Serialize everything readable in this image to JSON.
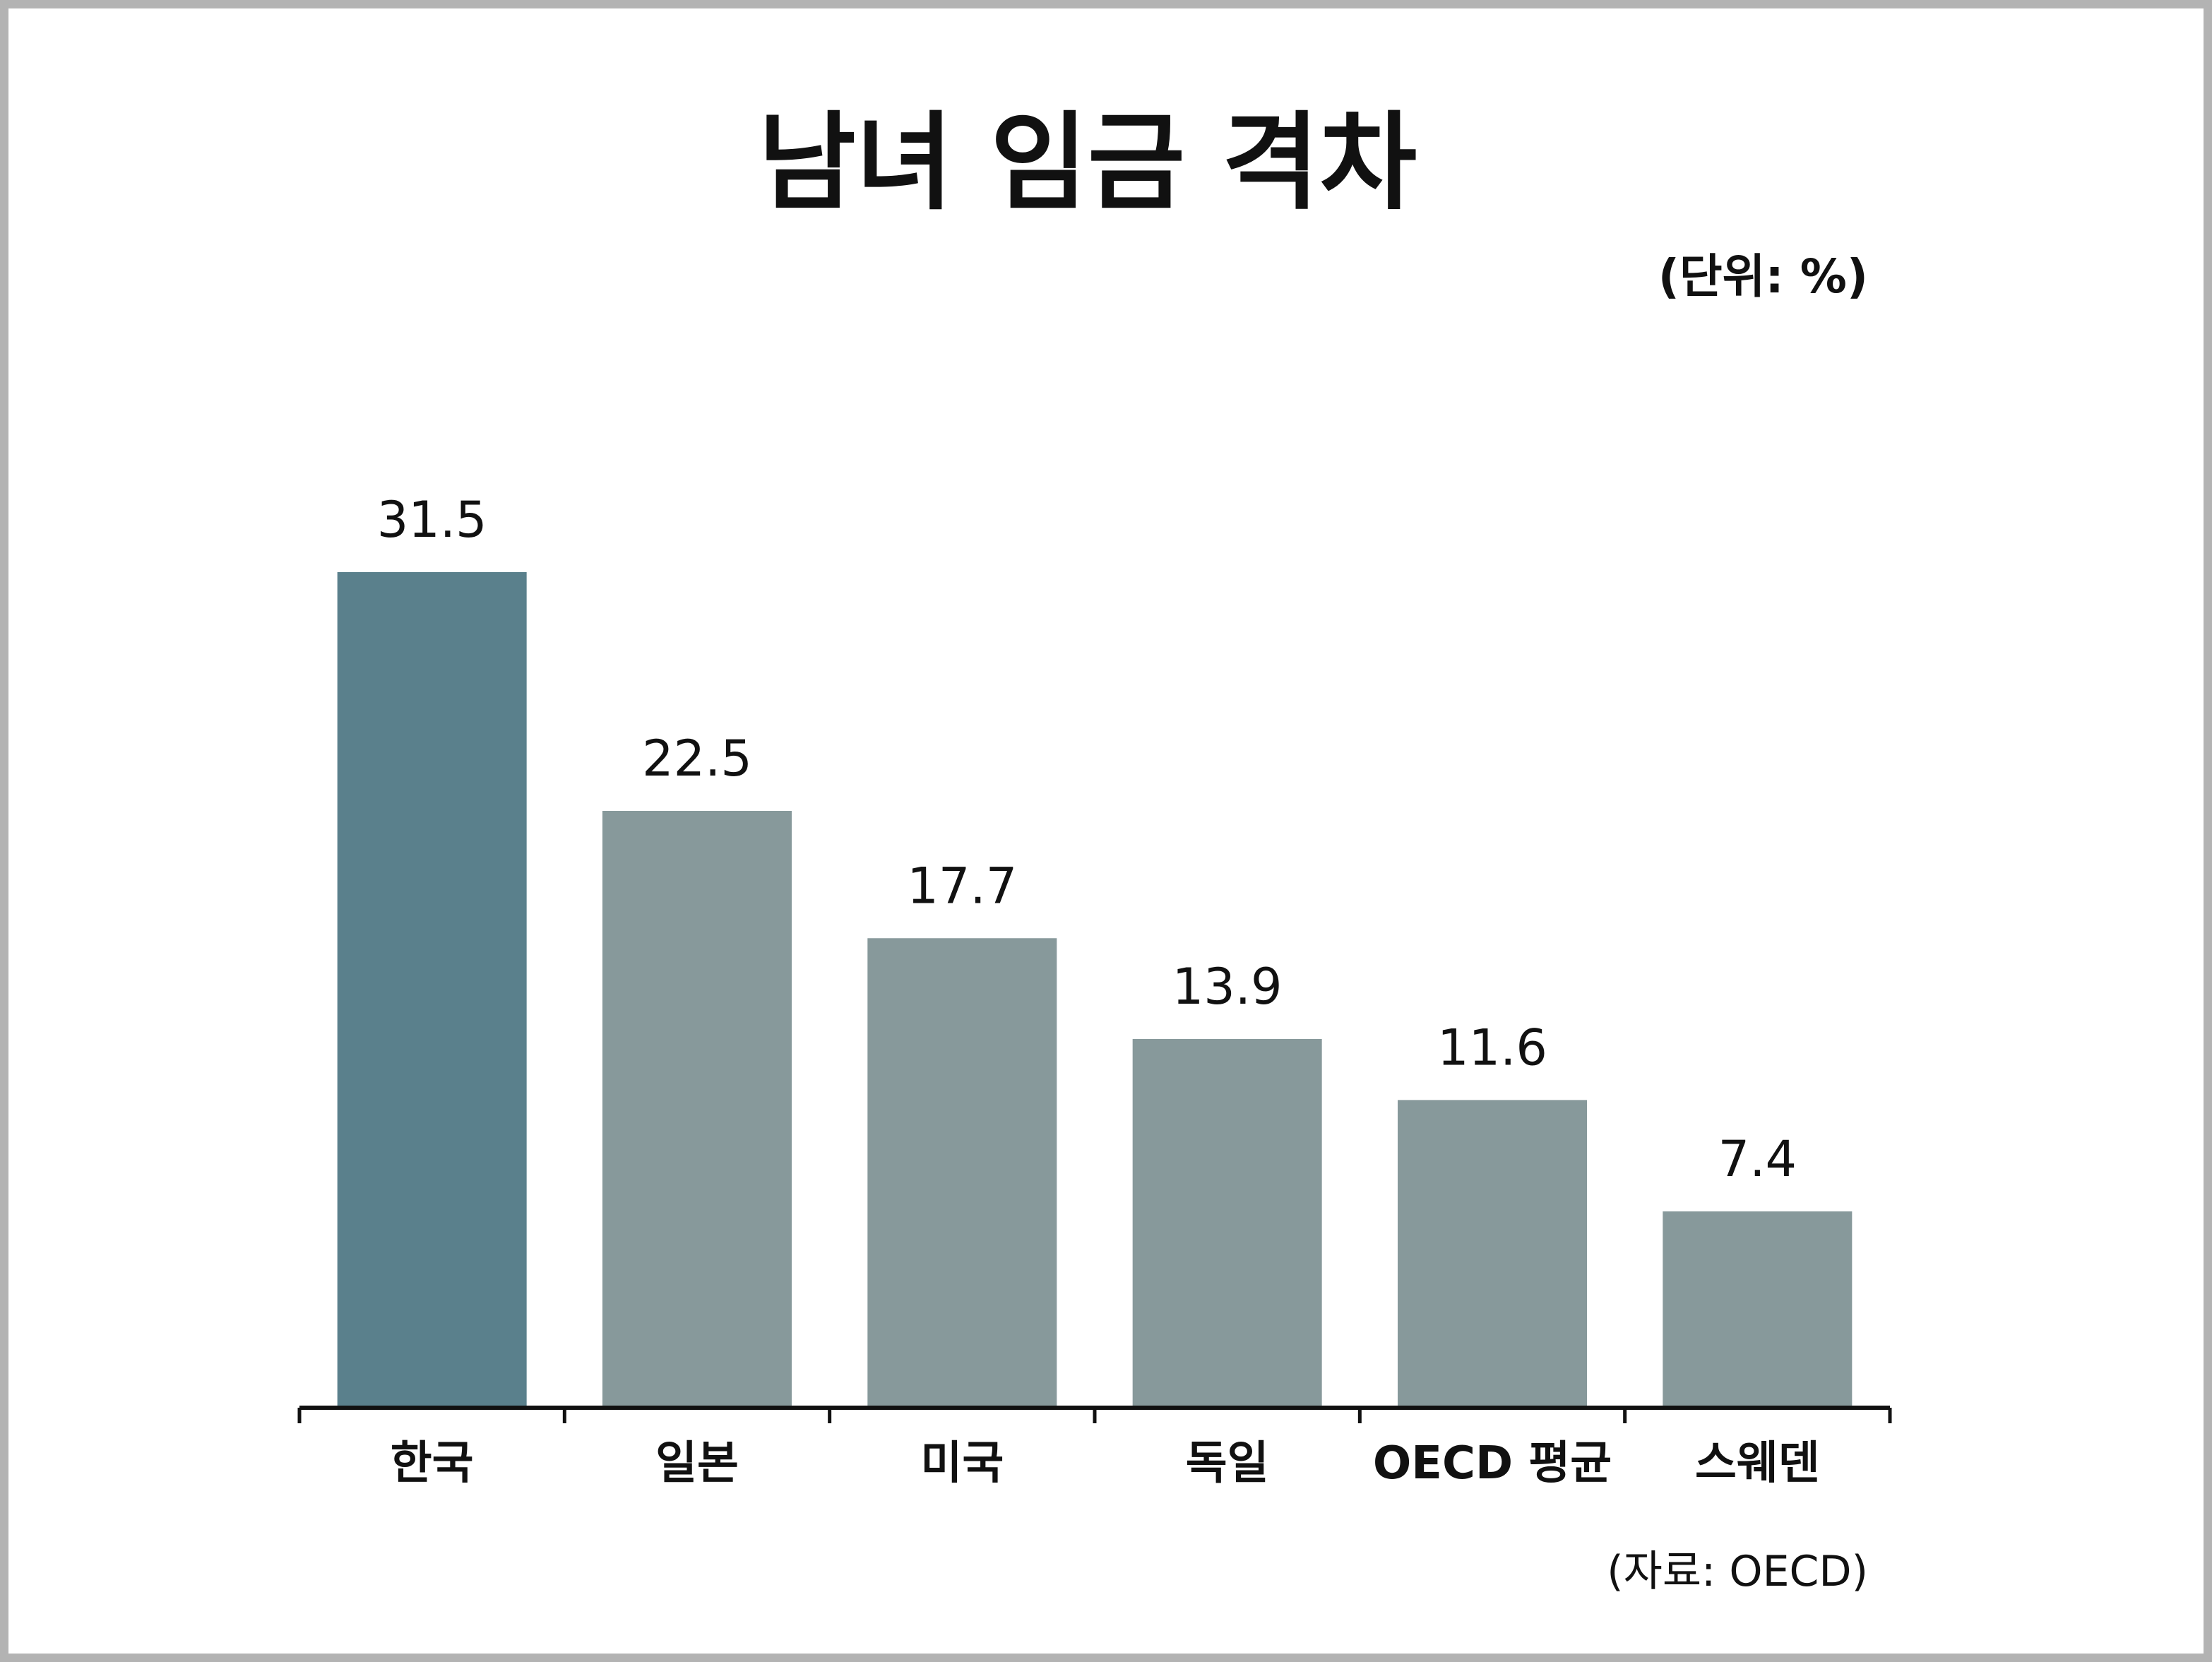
{
  "chart_data": {
    "type": "bar",
    "title": "남녀 임금 격차",
    "unit_label": "(단위: %)",
    "source_label": "(자료: OECD)",
    "categories": [
      "한국",
      "일본",
      "미국",
      "독일",
      "OECD 평균",
      "스웨덴"
    ],
    "values": [
      31.5,
      22.5,
      17.7,
      13.9,
      11.6,
      7.4
    ],
    "value_labels": [
      "31.5",
      "22.5",
      "17.7",
      "13.9",
      "11.6",
      "7.4"
    ],
    "ylim": [
      0,
      31.5
    ],
    "grid": false,
    "colors": {
      "highlight": "#5a808c",
      "default": "#87999b",
      "axis": "#111111"
    }
  }
}
